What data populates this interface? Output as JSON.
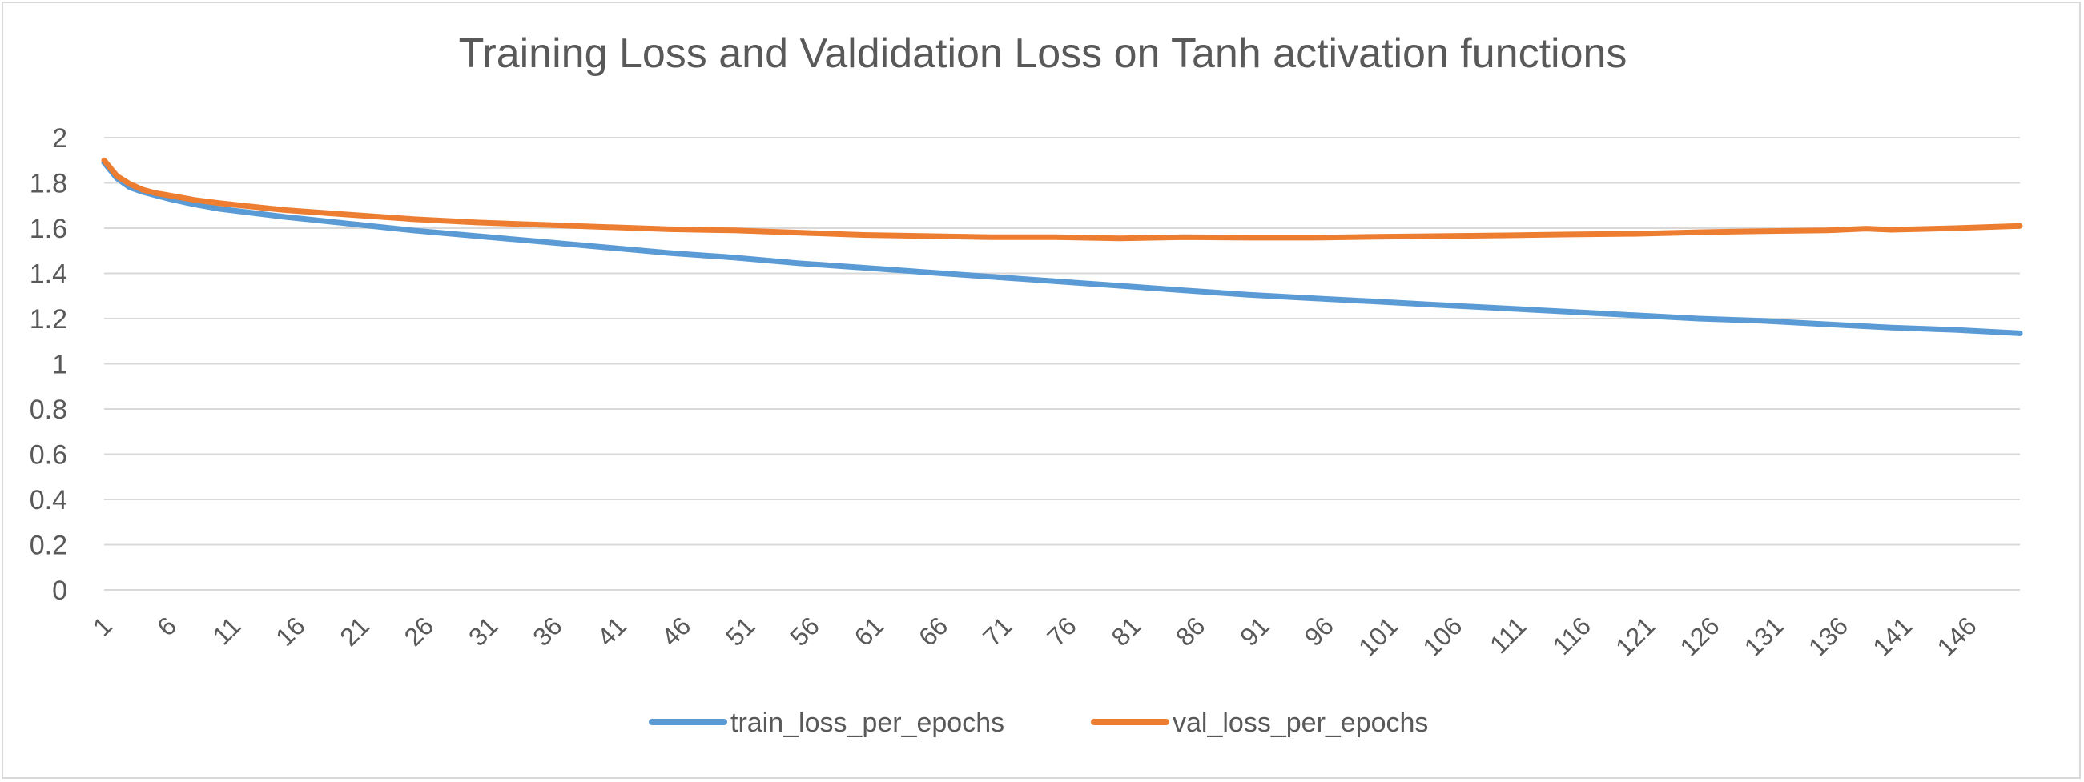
{
  "chart_data": {
    "type": "line",
    "title": "Training Loss and Valdidation Loss on Tanh activation functions",
    "xlabel": "",
    "ylabel": "",
    "ylim": [
      0,
      2
    ],
    "yticks": [
      "0",
      "0.2",
      "0.4",
      "0.6",
      "0.8",
      "1",
      "1.2",
      "1.4",
      "1.6",
      "1.8",
      "2"
    ],
    "xticks": [
      "1",
      "6",
      "11",
      "16",
      "21",
      "26",
      "31",
      "36",
      "41",
      "46",
      "51",
      "56",
      "61",
      "66",
      "71",
      "76",
      "81",
      "86",
      "91",
      "96",
      "101",
      "106",
      "111",
      "116",
      "121",
      "126",
      "131",
      "136",
      "141",
      "146"
    ],
    "x_range": [
      1,
      150
    ],
    "grid": true,
    "legend_position": "bottom",
    "series": [
      {
        "name": "train_loss_per_epochs",
        "color": "#5b9bd5",
        "x": [
          1,
          2,
          3,
          4,
          5,
          6,
          8,
          10,
          15,
          20,
          25,
          30,
          35,
          40,
          45,
          50,
          55,
          60,
          65,
          70,
          75,
          80,
          85,
          90,
          95,
          100,
          105,
          110,
          115,
          120,
          125,
          130,
          135,
          140,
          145,
          150
        ],
        "values": [
          1.89,
          1.82,
          1.78,
          1.76,
          1.745,
          1.73,
          1.705,
          1.685,
          1.65,
          1.62,
          1.59,
          1.565,
          1.54,
          1.515,
          1.49,
          1.47,
          1.445,
          1.425,
          1.405,
          1.385,
          1.365,
          1.345,
          1.325,
          1.305,
          1.29,
          1.275,
          1.26,
          1.245,
          1.23,
          1.215,
          1.2,
          1.19,
          1.175,
          1.16,
          1.15,
          1.135
        ]
      },
      {
        "name": "val_loss_per_epochs",
        "color": "#ed7d31",
        "x": [
          1,
          2,
          3,
          4,
          5,
          6,
          8,
          10,
          15,
          20,
          25,
          30,
          35,
          40,
          45,
          50,
          55,
          60,
          65,
          70,
          75,
          80,
          85,
          90,
          95,
          100,
          105,
          110,
          115,
          120,
          125,
          130,
          135,
          138,
          140,
          145,
          150
        ],
        "values": [
          1.9,
          1.83,
          1.795,
          1.77,
          1.755,
          1.745,
          1.725,
          1.71,
          1.68,
          1.66,
          1.64,
          1.625,
          1.615,
          1.605,
          1.595,
          1.59,
          1.58,
          1.57,
          1.565,
          1.56,
          1.56,
          1.555,
          1.56,
          1.558,
          1.558,
          1.562,
          1.565,
          1.568,
          1.572,
          1.575,
          1.582,
          1.587,
          1.59,
          1.598,
          1.593,
          1.6,
          1.61
        ]
      }
    ]
  }
}
